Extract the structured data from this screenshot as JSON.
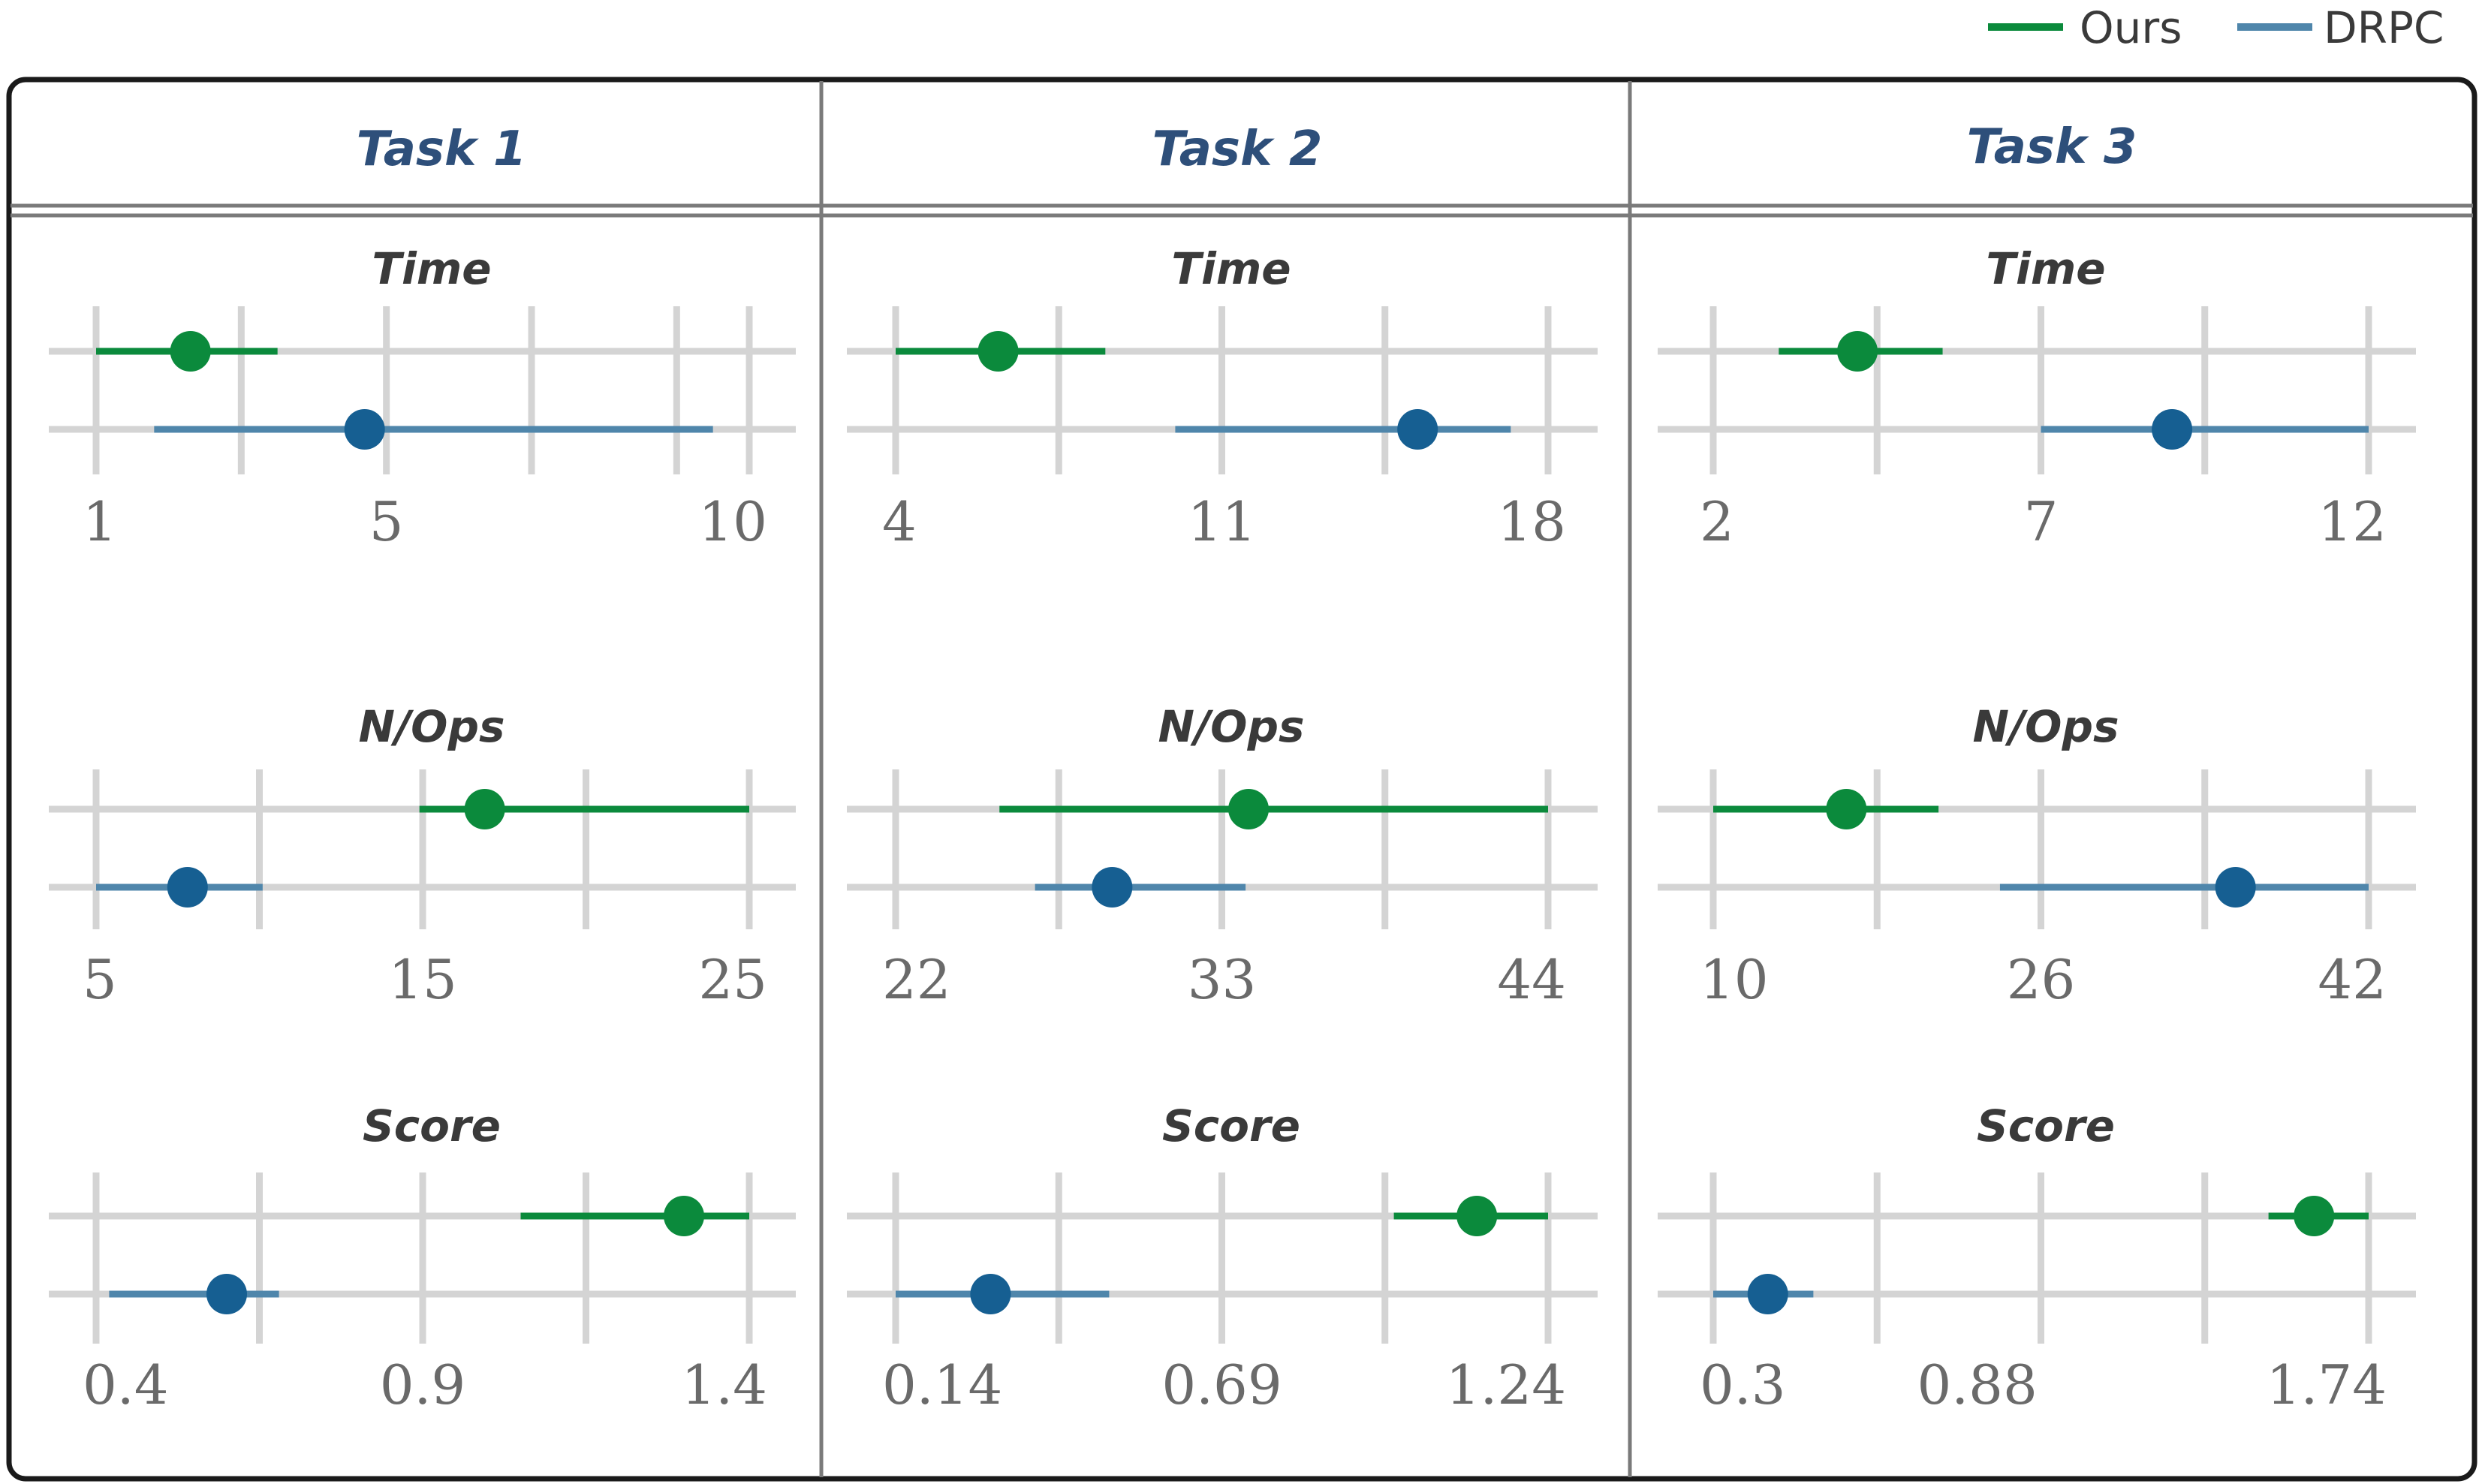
{
  "chart_data": {
    "type": "dot-and-whisker",
    "legend": {
      "position": "top-right",
      "entries": [
        {
          "name": "Ours",
          "color": "#0b8a3c"
        },
        {
          "name": "DRPC",
          "color": "#4f86ab"
        }
      ]
    },
    "grid": true,
    "colors": {
      "ours_line": "#0b8a3c",
      "ours_dot": "#0b8a3c",
      "drpc_line": "#4f86ab",
      "drpc_dot": "#165f92"
    },
    "columns": [
      {
        "title": "Task 1",
        "panels": [
          {
            "title": "Time",
            "xlim": [
              1,
              10
            ],
            "ticks": [
              "1",
              "5",
              "10"
            ],
            "tick_values": [
              1,
              5,
              10
            ],
            "grid": [
              1,
              3,
              5,
              7,
              9,
              10
            ],
            "rows": [
              {
                "series": "Ours",
                "low": 1.0,
                "est": 2.3,
                "high": 3.5
              },
              {
                "series": "DRPC",
                "low": 1.8,
                "est": 4.7,
                "high": 9.5
              }
            ]
          },
          {
            "title": "N/Ops",
            "xlim": [
              5,
              25
            ],
            "ticks": [
              "5",
              "15",
              "25"
            ],
            "tick_values": [
              5,
              15,
              25
            ],
            "grid": [
              5,
              10,
              15,
              20,
              25
            ],
            "rows": [
              {
                "series": "Ours",
                "low": 14.9,
                "est": 16.9,
                "high": 25.0
              },
              {
                "series": "DRPC",
                "low": 5.0,
                "est": 7.8,
                "high": 10.1
              }
            ]
          },
          {
            "title": "Score",
            "xlim": [
              0.4,
              1.4
            ],
            "ticks": [
              "0.4",
              "0.9",
              "1.4"
            ],
            "tick_values": [
              0.4,
              0.9,
              1.4
            ],
            "grid": [
              0.4,
              0.65,
              0.9,
              1.15,
              1.4
            ],
            "rows": [
              {
                "series": "Ours",
                "low": 1.05,
                "est": 1.3,
                "high": 1.4
              },
              {
                "series": "DRPC",
                "low": 0.42,
                "est": 0.6,
                "high": 0.68
              }
            ]
          }
        ]
      },
      {
        "title": "Task 2",
        "panels": [
          {
            "title": "Time",
            "xlim": [
              4,
              18
            ],
            "ticks": [
              "4",
              "11",
              "18"
            ],
            "tick_values": [
              4,
              11,
              18
            ],
            "grid": [
              4,
              7.5,
              11,
              14.5,
              18
            ],
            "rows": [
              {
                "series": "Ours",
                "low": 4.0,
                "est": 6.2,
                "high": 8.5
              },
              {
                "series": "DRPC",
                "low": 10.0,
                "est": 15.2,
                "high": 17.2
              }
            ]
          },
          {
            "title": "N/Ops",
            "xlim": [
              22,
              44
            ],
            "ticks": [
              "22",
              "33",
              "44"
            ],
            "tick_values": [
              22,
              33,
              44
            ],
            "grid": [
              22,
              27.5,
              33,
              38.5,
              44
            ],
            "rows": [
              {
                "series": "Ours",
                "low": 25.5,
                "est": 33.9,
                "high": 44.0
              },
              {
                "series": "DRPC",
                "low": 26.7,
                "est": 29.3,
                "high": 33.8
              }
            ]
          },
          {
            "title": "Score",
            "xlim": [
              0.14,
              1.24
            ],
            "ticks": [
              "0.14",
              "0.69",
              "1.24"
            ],
            "tick_values": [
              0.14,
              0.69,
              1.24
            ],
            "grid": [
              0.14,
              0.415,
              0.69,
              0.965,
              1.24
            ],
            "rows": [
              {
                "series": "Ours",
                "low": 0.98,
                "est": 1.12,
                "high": 1.24
              },
              {
                "series": "DRPC",
                "low": 0.14,
                "est": 0.3,
                "high": 0.5
              }
            ]
          }
        ]
      },
      {
        "title": "Task 3",
        "panels": [
          {
            "title": "Time",
            "xlim": [
              2,
              12
            ],
            "ticks": [
              "2",
              "7",
              "12"
            ],
            "tick_values": [
              2,
              7,
              12
            ],
            "grid": [
              2,
              4.5,
              7,
              9.5,
              12
            ],
            "rows": [
              {
                "series": "Ours",
                "low": 3.0,
                "est": 4.2,
                "high": 5.5
              },
              {
                "series": "DRPC",
                "low": 7.0,
                "est": 9.0,
                "high": 12.0
              }
            ]
          },
          {
            "title": "N/Ops",
            "xlim": [
              10,
              42
            ],
            "ticks": [
              "10",
              "26",
              "42"
            ],
            "tick_values": [
              10,
              26,
              42
            ],
            "grid": [
              10,
              18,
              26,
              34,
              42
            ],
            "rows": [
              {
                "series": "Ours",
                "low": 10.0,
                "est": 16.5,
                "high": 21.0
              },
              {
                "series": "DRPC",
                "low": 24.0,
                "est": 35.5,
                "high": 42.0
              }
            ]
          },
          {
            "title": "Score",
            "xlim": [
              0.3,
              1.74
            ],
            "ticks": [
              "0.3",
              "0.88",
              "1.74"
            ],
            "tick_values": [
              0.3,
              0.88,
              1.74
            ],
            "grid": [
              0.3,
              0.66,
              1.02,
              1.38,
              1.74
            ],
            "rows": [
              {
                "series": "Ours",
                "low": 1.52,
                "est": 1.62,
                "high": 1.74
              },
              {
                "series": "DRPC",
                "low": 0.3,
                "est": 0.42,
                "high": 0.52
              }
            ]
          }
        ]
      }
    ]
  }
}
